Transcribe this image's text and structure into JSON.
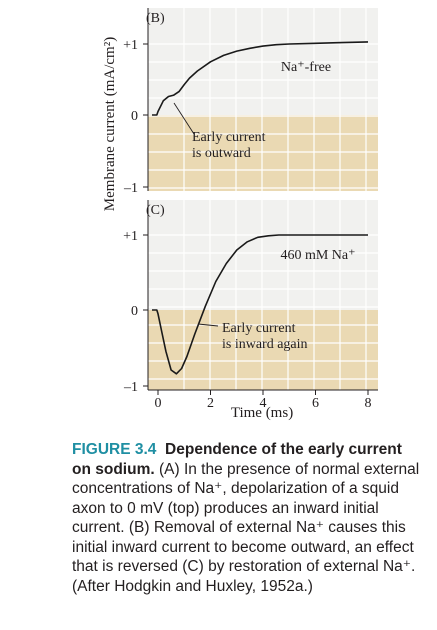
{
  "figure": {
    "ylabel": "Membrane current (mA/cm²)",
    "xlabel": "Time (ms)",
    "x_ticks": [
      "0",
      "2",
      "4",
      "6",
      "8"
    ],
    "colors": {
      "band": "#ead9b3",
      "grid": "#ffffff",
      "curve": "#1a1a1a",
      "caption_accent": "#1f8fa3"
    }
  },
  "chart_data": [
    {
      "type": "line",
      "panel_label": "(B)",
      "y_ticks": [
        "+1",
        "0",
        "–1"
      ],
      "ylim": [
        -1,
        1
      ],
      "xlim": [
        0,
        8
      ],
      "series_label": "Na⁺-free",
      "annotation": [
        "Early current",
        "is outward"
      ],
      "grid": true,
      "x": [
        -0.5,
        -0.1,
        0.0,
        0.2,
        0.4,
        0.6,
        0.8,
        1.0,
        1.2,
        1.5,
        2.0,
        2.5,
        3.0,
        3.5,
        4.0,
        4.5,
        5.0,
        6.0,
        7.0,
        8.0
      ],
      "y": [
        0.0,
        0.0,
        0.05,
        0.2,
        0.26,
        0.28,
        0.33,
        0.43,
        0.52,
        0.62,
        0.75,
        0.84,
        0.9,
        0.94,
        0.97,
        0.99,
        1.0,
        1.01,
        1.02,
        1.03
      ]
    },
    {
      "type": "line",
      "panel_label": "(C)",
      "y_ticks": [
        "+1",
        "0",
        "–1"
      ],
      "ylim": [
        -1,
        1
      ],
      "xlim": [
        0,
        8
      ],
      "series_label": "460 mM Na⁺",
      "annotation": [
        "Early current",
        "is inward again"
      ],
      "grid": true,
      "x": [
        -0.5,
        -0.1,
        0.0,
        0.15,
        0.3,
        0.5,
        0.7,
        0.9,
        1.1,
        1.4,
        1.8,
        2.2,
        2.6,
        3.0,
        3.4,
        3.8,
        4.2,
        4.6,
        5.0,
        6.0,
        7.0,
        8.0
      ],
      "y": [
        0.0,
        0.0,
        -0.05,
        -0.3,
        -0.55,
        -0.8,
        -0.85,
        -0.78,
        -0.62,
        -0.32,
        0.05,
        0.38,
        0.62,
        0.8,
        0.91,
        0.97,
        0.99,
        1.0,
        1.0,
        1.0,
        1.0,
        1.0
      ]
    }
  ],
  "caption": {
    "label": "FIGURE 3.4",
    "title": "Dependence of the early current on sodium.",
    "body": "(A) In the presence of normal external concentrations of Na⁺, depolarization of a squid axon to 0 mV (top) produces an inward initial current. (B) Removal of external Na⁺ causes this initial inward current to become outward, an effect that is reversed (C) by restoration of external Na⁺. (After Hodgkin and Huxley, 1952a.)"
  }
}
